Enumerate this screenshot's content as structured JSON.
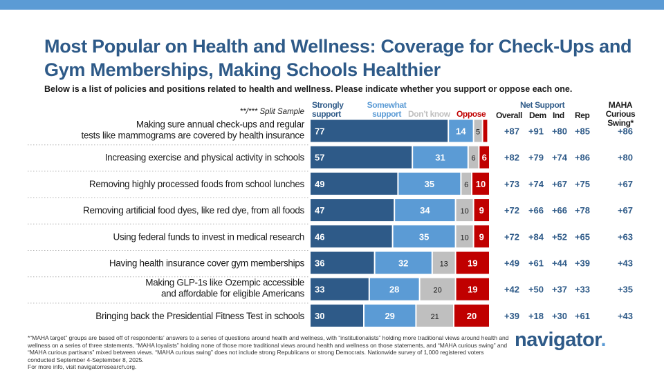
{
  "header": {
    "title": "Most Popular on Health and Wellness: Coverage for Check-Ups and Gym Memberships, Making Schools Healthier",
    "subtitle": "Below is a list of policies and positions related to health and wellness. Please indicate whether you support or oppose each one.",
    "split_note": "**/*** Split Sample"
  },
  "columns": {
    "strongly_support": "Strongly support",
    "somewhat_support": "Somewhat support",
    "dont_know": "Don’t know",
    "oppose": "Oppose",
    "net_support": "Net Support",
    "overall": "Overall",
    "dem": "Dem",
    "ind": "Ind",
    "rep": "Rep",
    "maha": "MAHA Curious Swing*"
  },
  "colors": {
    "strongly_support": "#2e5a88",
    "somewhat_support": "#5b9bd5",
    "dont_know": "#bfbfbf",
    "oppose": "#c00000",
    "title": "#2e5a88",
    "top_bar": "#5b9bd5"
  },
  "chart_data": {
    "type": "stacked-bar-horizontal",
    "series_names": [
      "Strongly support",
      "Somewhat support",
      "Don’t know",
      "Oppose"
    ],
    "rows": [
      {
        "label": [
          "Making sure annual check-ups and regular",
          "tests like mammograms are covered by health insurance"
        ],
        "values": [
          77,
          14,
          5,
          3
        ],
        "labels": [
          "77",
          "14",
          "5",
          ""
        ],
        "net": [
          "+87",
          "+91",
          "+80",
          "+85",
          "+86"
        ]
      },
      {
        "label": [
          "Increasing exercise and physical activity in schools"
        ],
        "values": [
          57,
          31,
          6,
          6
        ],
        "labels": [
          "57",
          "31",
          "6",
          "6"
        ],
        "net": [
          "+82",
          "+79",
          "+74",
          "+86",
          "+80"
        ]
      },
      {
        "label": [
          "Removing highly processed foods from school lunches"
        ],
        "values": [
          49,
          35,
          6,
          10
        ],
        "labels": [
          "49",
          "35",
          "6",
          "10"
        ],
        "net": [
          "+73",
          "+74",
          "+67",
          "+75",
          "+67"
        ]
      },
      {
        "label": [
          "Removing artificial food dyes, like red dye, from all foods"
        ],
        "values": [
          47,
          34,
          10,
          9
        ],
        "labels": [
          "47",
          "34",
          "10",
          "9"
        ],
        "net": [
          "+72",
          "+66",
          "+66",
          "+78",
          "+67"
        ]
      },
      {
        "label": [
          "Using federal funds to invest in medical research"
        ],
        "values": [
          46,
          35,
          10,
          9
        ],
        "labels": [
          "46",
          "35",
          "10",
          "9"
        ],
        "net": [
          "+72",
          "+84",
          "+52",
          "+65",
          "+63"
        ]
      },
      {
        "label": [
          "Having health insurance cover gym memberships"
        ],
        "values": [
          36,
          32,
          13,
          19
        ],
        "labels": [
          "36",
          "32",
          "13",
          "19"
        ],
        "net": [
          "+49",
          "+61",
          "+44",
          "+39",
          "+43"
        ]
      },
      {
        "label": [
          "Making GLP-1s like Ozempic accessible",
          "and affordable for eligible Americans"
        ],
        "values": [
          33,
          28,
          20,
          19
        ],
        "labels": [
          "33",
          "28",
          "20",
          "19"
        ],
        "net": [
          "+42",
          "+50",
          "+37",
          "+33",
          "+35"
        ]
      },
      {
        "label": [
          "Bringing back the Presidential Fitness Test in schools"
        ],
        "values": [
          30,
          29,
          21,
          20
        ],
        "labels": [
          "30",
          "29",
          "21",
          "20"
        ],
        "net": [
          "+39",
          "+18",
          "+30",
          "+61",
          "+43"
        ]
      }
    ]
  },
  "footnote": [
    "*“MAHA target” groups are based off of respondents’ answers to a series of questions around health and wellness, with “institutionalists” holding more traditional views around health and wellness on a series of three statements, “MAHA loyalists” holding none of those more traditional views around health and wellness on those statements, and “MAHA curious swing” and “MAHA curious partisans” mixed between views. “MAHA curious swing” does not include strong Republicans or strong Democrats. Nationwide survey of 1,000 registered voters conducted September 4-September 8, 2025.",
    "For more info, visit navigatorresearch.org."
  ],
  "logo": {
    "text": "navigator",
    "dot": "."
  }
}
